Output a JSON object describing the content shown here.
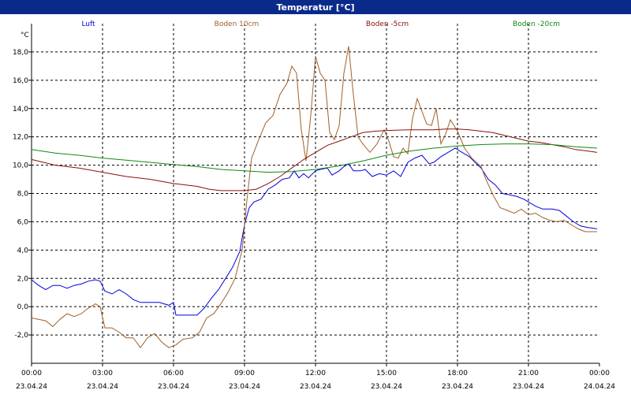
{
  "window": {
    "title": "Temperatur [°C]",
    "title_bg": "#0a2a8a"
  },
  "chart_data": {
    "type": "line",
    "ylabel": "°C",
    "ylim": [
      -4,
      20
    ],
    "xlim": [
      0,
      24
    ],
    "grid": true,
    "legend_position": "top",
    "yticks": [
      -2,
      0,
      2,
      4,
      6,
      8,
      10,
      12,
      14,
      16,
      18
    ],
    "ytick_labels": [
      "-2,0",
      "0,0",
      "2,0",
      "4,0",
      "6,0",
      "8,0",
      "10,0",
      "12,0",
      "14,0",
      "16,0",
      "18,0"
    ],
    "xticks": [
      0,
      3,
      6,
      9,
      12,
      15,
      18,
      21,
      24
    ],
    "xtick_labels": [
      [
        "00:00",
        "23.04.24"
      ],
      [
        "03:00",
        "23.04.24"
      ],
      [
        "06:00",
        "23.04.24"
      ],
      [
        "09:00",
        "23.04.24"
      ],
      [
        "12:00",
        "23.04.24"
      ],
      [
        "15:00",
        "23.04.24"
      ],
      [
        "18:00",
        "23.04.24"
      ],
      [
        "21:00",
        "23.04.24"
      ],
      [
        "00:00",
        "24.04.24"
      ]
    ],
    "series": [
      {
        "name": "Luft",
        "color": "#0000dd",
        "points": [
          [
            0,
            1.9
          ],
          [
            0.3,
            1.5
          ],
          [
            0.6,
            1.2
          ],
          [
            0.9,
            1.5
          ],
          [
            1.2,
            1.5
          ],
          [
            1.5,
            1.3
          ],
          [
            1.8,
            1.5
          ],
          [
            2.1,
            1.6
          ],
          [
            2.4,
            1.8
          ],
          [
            2.7,
            1.9
          ],
          [
            2.9,
            1.8
          ],
          [
            3.1,
            1.1
          ],
          [
            3.4,
            0.9
          ],
          [
            3.7,
            1.2
          ],
          [
            4.0,
            0.9
          ],
          [
            4.3,
            0.5
          ],
          [
            4.6,
            0.3
          ],
          [
            5.0,
            0.3
          ],
          [
            5.4,
            0.3
          ],
          [
            5.8,
            0.1
          ],
          [
            6.0,
            0.3
          ],
          [
            6.1,
            -0.6
          ],
          [
            6.5,
            -0.6
          ],
          [
            7.0,
            -0.6
          ],
          [
            7.3,
            -0.1
          ],
          [
            7.6,
            0.6
          ],
          [
            7.9,
            1.2
          ],
          [
            8.2,
            2.0
          ],
          [
            8.5,
            2.8
          ],
          [
            8.8,
            3.9
          ],
          [
            9.0,
            5.8
          ],
          [
            9.2,
            7.0
          ],
          [
            9.4,
            7.4
          ],
          [
            9.7,
            7.6
          ],
          [
            10.0,
            8.3
          ],
          [
            10.3,
            8.6
          ],
          [
            10.6,
            9.0
          ],
          [
            10.9,
            9.1
          ],
          [
            11.1,
            9.6
          ],
          [
            11.3,
            9.1
          ],
          [
            11.5,
            9.4
          ],
          [
            11.7,
            9.1
          ],
          [
            12.0,
            9.6
          ],
          [
            12.2,
            9.7
          ],
          [
            12.5,
            9.8
          ],
          [
            12.7,
            9.3
          ],
          [
            13.0,
            9.6
          ],
          [
            13.2,
            9.9
          ],
          [
            13.4,
            10.1
          ],
          [
            13.6,
            9.6
          ],
          [
            13.9,
            9.6
          ],
          [
            14.1,
            9.7
          ],
          [
            14.4,
            9.2
          ],
          [
            14.7,
            9.4
          ],
          [
            15.0,
            9.3
          ],
          [
            15.3,
            9.6
          ],
          [
            15.6,
            9.2
          ],
          [
            15.9,
            10.2
          ],
          [
            16.2,
            10.5
          ],
          [
            16.5,
            10.7
          ],
          [
            16.8,
            10.1
          ],
          [
            17.0,
            10.2
          ],
          [
            17.3,
            10.6
          ],
          [
            17.6,
            10.9
          ],
          [
            17.9,
            11.2
          ],
          [
            18.2,
            10.9
          ],
          [
            18.5,
            10.6
          ],
          [
            18.8,
            10.1
          ],
          [
            19.0,
            9.8
          ],
          [
            19.3,
            9.0
          ],
          [
            19.6,
            8.6
          ],
          [
            19.9,
            8.0
          ],
          [
            20.2,
            7.9
          ],
          [
            20.5,
            7.8
          ],
          [
            20.8,
            7.6
          ],
          [
            21.0,
            7.4
          ],
          [
            21.3,
            7.1
          ],
          [
            21.6,
            6.9
          ],
          [
            22.0,
            6.9
          ],
          [
            22.3,
            6.8
          ],
          [
            22.6,
            6.4
          ],
          [
            22.9,
            6.0
          ],
          [
            23.2,
            5.7
          ],
          [
            23.5,
            5.6
          ],
          [
            23.9,
            5.5
          ]
        ]
      },
      {
        "name": "Boden 10cm",
        "color": "#a0602a",
        "points": [
          [
            0,
            -0.8
          ],
          [
            0.3,
            -0.9
          ],
          [
            0.6,
            -1.0
          ],
          [
            0.9,
            -1.4
          ],
          [
            1.2,
            -0.9
          ],
          [
            1.5,
            -0.5
          ],
          [
            1.8,
            -0.7
          ],
          [
            2.1,
            -0.5
          ],
          [
            2.4,
            -0.1
          ],
          [
            2.7,
            0.2
          ],
          [
            2.9,
            0.0
          ],
          [
            3.1,
            -1.5
          ],
          [
            3.4,
            -1.5
          ],
          [
            3.7,
            -1.8
          ],
          [
            4.0,
            -2.2
          ],
          [
            4.3,
            -2.2
          ],
          [
            4.6,
            -2.9
          ],
          [
            4.9,
            -2.2
          ],
          [
            5.2,
            -1.9
          ],
          [
            5.5,
            -2.5
          ],
          [
            5.8,
            -2.9
          ],
          [
            6.1,
            -2.7
          ],
          [
            6.4,
            -2.3
          ],
          [
            6.8,
            -2.2
          ],
          [
            7.1,
            -1.8
          ],
          [
            7.4,
            -0.8
          ],
          [
            7.7,
            -0.5
          ],
          [
            8.0,
            0.2
          ],
          [
            8.3,
            1.0
          ],
          [
            8.6,
            2.0
          ],
          [
            8.9,
            4.0
          ],
          [
            9.1,
            7.5
          ],
          [
            9.3,
            10.5
          ],
          [
            9.6,
            11.8
          ],
          [
            9.9,
            13.0
          ],
          [
            10.2,
            13.5
          ],
          [
            10.5,
            15.0
          ],
          [
            10.8,
            15.8
          ],
          [
            11.0,
            17.0
          ],
          [
            11.2,
            16.5
          ],
          [
            11.4,
            12.5
          ],
          [
            11.6,
            10.3
          ],
          [
            11.8,
            13.5
          ],
          [
            12.0,
            17.7
          ],
          [
            12.2,
            16.5
          ],
          [
            12.4,
            16.0
          ],
          [
            12.6,
            12.3
          ],
          [
            12.8,
            11.8
          ],
          [
            13.0,
            12.8
          ],
          [
            13.2,
            16.5
          ],
          [
            13.4,
            18.4
          ],
          [
            13.6,
            15.0
          ],
          [
            13.8,
            12.0
          ],
          [
            14.0,
            11.5
          ],
          [
            14.3,
            10.9
          ],
          [
            14.6,
            11.5
          ],
          [
            14.9,
            12.5
          ],
          [
            15.1,
            11.7
          ],
          [
            15.3,
            10.6
          ],
          [
            15.5,
            10.5
          ],
          [
            15.7,
            11.2
          ],
          [
            15.9,
            10.8
          ],
          [
            16.1,
            13.3
          ],
          [
            16.3,
            14.7
          ],
          [
            16.5,
            13.8
          ],
          [
            16.7,
            12.9
          ],
          [
            16.9,
            12.8
          ],
          [
            17.1,
            14.0
          ],
          [
            17.3,
            11.5
          ],
          [
            17.5,
            12.2
          ],
          [
            17.7,
            13.2
          ],
          [
            18.0,
            12.4
          ],
          [
            18.3,
            11.2
          ],
          [
            18.6,
            10.5
          ],
          [
            19.0,
            9.9
          ],
          [
            19.2,
            9.0
          ],
          [
            19.5,
            7.9
          ],
          [
            19.8,
            7.0
          ],
          [
            20.1,
            6.8
          ],
          [
            20.4,
            6.6
          ],
          [
            20.7,
            6.9
          ],
          [
            21.0,
            6.5
          ],
          [
            21.3,
            6.6
          ],
          [
            21.6,
            6.3
          ],
          [
            21.9,
            6.1
          ],
          [
            22.2,
            6.0
          ],
          [
            22.5,
            6.1
          ],
          [
            22.8,
            5.8
          ],
          [
            23.1,
            5.5
          ],
          [
            23.4,
            5.3
          ],
          [
            23.9,
            5.3
          ]
        ]
      },
      {
        "name": "Boden -5cm",
        "color": "#8b0f0f",
        "points": [
          [
            0,
            10.4
          ],
          [
            1,
            10.0
          ],
          [
            2,
            9.8
          ],
          [
            3,
            9.5
          ],
          [
            4,
            9.2
          ],
          [
            5,
            9.0
          ],
          [
            6,
            8.7
          ],
          [
            7,
            8.5
          ],
          [
            7.5,
            8.3
          ],
          [
            8,
            8.2
          ],
          [
            8.5,
            8.2
          ],
          [
            9,
            8.2
          ],
          [
            9.5,
            8.3
          ],
          [
            10,
            8.7
          ],
          [
            10.5,
            9.2
          ],
          [
            11,
            9.8
          ],
          [
            11.5,
            10.4
          ],
          [
            12,
            10.9
          ],
          [
            12.5,
            11.4
          ],
          [
            13,
            11.7
          ],
          [
            13.5,
            12.0
          ],
          [
            14,
            12.3
          ],
          [
            14.5,
            12.4
          ],
          [
            15,
            12.45
          ],
          [
            16,
            12.5
          ],
          [
            17,
            12.5
          ],
          [
            17.5,
            12.55
          ],
          [
            18,
            12.55
          ],
          [
            18.5,
            12.5
          ],
          [
            19,
            12.4
          ],
          [
            19.5,
            12.3
          ],
          [
            20,
            12.1
          ],
          [
            20.5,
            11.9
          ],
          [
            21,
            11.7
          ],
          [
            21.5,
            11.6
          ],
          [
            22,
            11.45
          ],
          [
            22.5,
            11.3
          ],
          [
            23,
            11.1
          ],
          [
            23.5,
            11.0
          ],
          [
            23.9,
            10.9
          ]
        ]
      },
      {
        "name": "Boden -20cm",
        "color": "#118811",
        "points": [
          [
            0,
            11.1
          ],
          [
            1,
            10.85
          ],
          [
            2,
            10.7
          ],
          [
            3,
            10.5
          ],
          [
            4,
            10.35
          ],
          [
            5,
            10.2
          ],
          [
            6,
            10.05
          ],
          [
            7,
            9.9
          ],
          [
            8,
            9.7
          ],
          [
            9,
            9.6
          ],
          [
            10,
            9.5
          ],
          [
            11,
            9.55
          ],
          [
            12,
            9.7
          ],
          [
            13,
            9.95
          ],
          [
            14,
            10.3
          ],
          [
            15,
            10.7
          ],
          [
            16,
            11.0
          ],
          [
            17,
            11.2
          ],
          [
            18,
            11.35
          ],
          [
            19,
            11.45
          ],
          [
            20,
            11.5
          ],
          [
            21,
            11.5
          ],
          [
            22,
            11.45
          ],
          [
            23,
            11.3
          ],
          [
            23.9,
            11.2
          ]
        ]
      }
    ]
  }
}
